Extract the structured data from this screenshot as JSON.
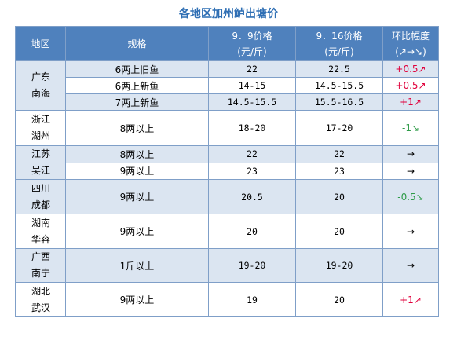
{
  "title": "各地区加州鲈出塘价",
  "headers": {
    "region": "地区",
    "spec": "规格",
    "price1_line1": "9．9价格",
    "price1_line2": "(元/斤)",
    "price2_line1": "9．16价格",
    "price2_line2": "(元/斤)",
    "change_line1": "环比幅度",
    "change_line2": "(↗→↘)"
  },
  "regions": [
    {
      "line1": "广东",
      "line2": "南海"
    },
    {
      "line1": "浙江",
      "line2": "湖州"
    },
    {
      "line1": "江苏",
      "line2": "吴江"
    },
    {
      "line1": "四川",
      "line2": "成都"
    },
    {
      "line1": "湖南",
      "line2": "华容"
    },
    {
      "line1": "广西",
      "line2": "南宁"
    },
    {
      "line1": "湖北",
      "line2": "武汉"
    }
  ],
  "rows": [
    {
      "spec": "6两上旧鱼",
      "p1": "22",
      "p2": "22.5",
      "change": "+0.5↗",
      "trend": "up"
    },
    {
      "spec": "6两上新鱼",
      "p1": "14-15",
      "p2": "14.5-15.5",
      "change": "+0.5↗",
      "trend": "up"
    },
    {
      "spec": "7两上新鱼",
      "p1": "14.5-15.5",
      "p2": "15.5-16.5",
      "change": "+1↗",
      "trend": "up"
    },
    {
      "spec": "8两以上",
      "p1": "18-20",
      "p2": "17-20",
      "change": "-1↘",
      "trend": "down"
    },
    {
      "spec": "8两以上",
      "p1": "22",
      "p2": "22",
      "change": "→",
      "trend": "flat"
    },
    {
      "spec": "9两以上",
      "p1": "23",
      "p2": "23",
      "change": "→",
      "trend": "flat"
    },
    {
      "spec": "9两以上",
      "p1": "20.5",
      "p2": "20",
      "change": "-0.5↘",
      "trend": "down"
    },
    {
      "spec": "9两以上",
      "p1": "20",
      "p2": "20",
      "change": "→",
      "trend": "flat"
    },
    {
      "spec": "1斤以上",
      "p1": "19-20",
      "p2": "19-20",
      "change": "→",
      "trend": "flat"
    },
    {
      "spec": "9两以上",
      "p1": "19",
      "p2": "20",
      "change": "+1↗",
      "trend": "up"
    }
  ],
  "colors": {
    "header_bg": "#4f81bd",
    "title": "#2f6fb4",
    "shade": "#dbe5f1",
    "up": "#e0003b",
    "down": "#2e9b48"
  }
}
